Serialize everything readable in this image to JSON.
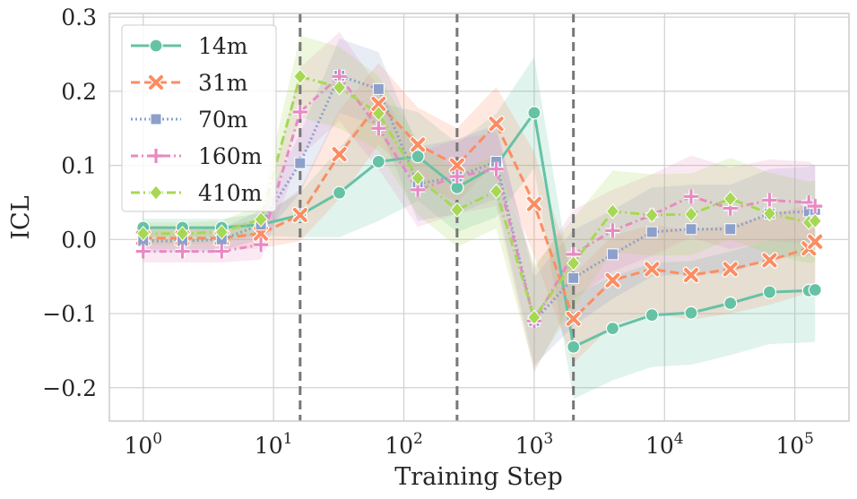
{
  "chart_data": {
    "type": "line",
    "title": "",
    "xlabel": "Training Step",
    "ylabel": "ICL",
    "xscale": "log",
    "xlim": [
      0.55,
      260000
    ],
    "ylim": [
      -0.245,
      0.305
    ],
    "x_ticks": [
      {
        "value": 1,
        "base": "10",
        "exp": "0"
      },
      {
        "value": 10,
        "base": "10",
        "exp": "1"
      },
      {
        "value": 100,
        "base": "10",
        "exp": "2"
      },
      {
        "value": 1000,
        "base": "10",
        "exp": "3"
      },
      {
        "value": 10000,
        "base": "10",
        "exp": "4"
      },
      {
        "value": 100000,
        "base": "10",
        "exp": "5"
      }
    ],
    "y_ticks": [
      {
        "value": -0.2,
        "label": "−0.2"
      },
      {
        "value": -0.1,
        "label": "−0.1"
      },
      {
        "value": 0.0,
        "label": "0.0"
      },
      {
        "value": 0.1,
        "label": "0.1"
      },
      {
        "value": 0.2,
        "label": "0.2"
      },
      {
        "value": 0.3,
        "label": "0.3"
      }
    ],
    "grid": true,
    "legend_position": "top-left",
    "vlines": [
      16,
      256,
      2000
    ],
    "x": [
      1,
      2,
      4,
      8,
      16,
      32,
      64,
      128,
      256,
      512,
      1000,
      2000,
      4000,
      8000,
      16000,
      32000,
      64000,
      128000,
      143000
    ],
    "series": [
      {
        "name": "14m",
        "color": "#66c2a5",
        "dash": "",
        "marker": "circle",
        "values": [
          0.016,
          0.016,
          0.016,
          0.02,
          0.033,
          0.063,
          0.105,
          0.112,
          0.07,
          0.1,
          0.171,
          -0.145,
          -0.12,
          -0.102,
          -0.099,
          -0.086,
          -0.071,
          -0.069,
          -0.068
        ],
        "band": [
          0.012,
          0.012,
          0.012,
          0.015,
          0.03,
          0.06,
          0.08,
          0.06,
          0.06,
          0.07,
          0.075,
          0.07,
          0.07,
          0.07,
          0.07,
          0.07,
          0.07,
          0.07,
          0.07
        ]
      },
      {
        "name": "31m",
        "color": "#fc8d62",
        "dash": "10,5",
        "marker": "x",
        "values": [
          0.002,
          0.002,
          0.002,
          0.008,
          0.033,
          0.115,
          0.183,
          0.128,
          0.1,
          0.156,
          0.048,
          -0.107,
          -0.055,
          -0.04,
          -0.048,
          -0.04,
          -0.028,
          -0.012,
          -0.003
        ],
        "band": [
          0.015,
          0.015,
          0.015,
          0.02,
          0.035,
          0.06,
          0.055,
          0.05,
          0.05,
          0.05,
          0.07,
          0.06,
          0.06,
          0.06,
          0.06,
          0.06,
          0.06,
          0.06,
          0.06
        ]
      },
      {
        "name": "70m",
        "color": "#8da0cb",
        "dash": "2,3",
        "marker": "square",
        "values": [
          -0.002,
          -0.002,
          0.0,
          0.02,
          0.103,
          0.221,
          0.203,
          0.075,
          0.085,
          0.105,
          -0.11,
          -0.052,
          -0.02,
          0.01,
          0.014,
          0.014,
          0.035,
          0.038,
          0.04
        ],
        "band": [
          0.015,
          0.015,
          0.015,
          0.02,
          0.04,
          0.05,
          0.05,
          0.05,
          0.05,
          0.05,
          0.06,
          0.065,
          0.06,
          0.06,
          0.06,
          0.06,
          0.06,
          0.06,
          0.06
        ]
      },
      {
        "name": "160m",
        "color": "#e78ac3",
        "dash": "8,4,2,4",
        "marker": "plus",
        "values": [
          -0.016,
          -0.016,
          -0.016,
          -0.007,
          0.172,
          0.22,
          0.15,
          0.067,
          0.085,
          0.095,
          -0.11,
          -0.02,
          0.012,
          0.033,
          0.058,
          0.042,
          0.053,
          0.05,
          0.045
        ],
        "band": [
          0.015,
          0.015,
          0.015,
          0.02,
          0.06,
          0.06,
          0.055,
          0.05,
          0.05,
          0.05,
          0.07,
          0.06,
          0.055,
          0.055,
          0.055,
          0.055,
          0.055,
          0.055,
          0.055
        ]
      },
      {
        "name": "410m",
        "color": "#a6d854",
        "dash": "10,4,2,4",
        "marker": "diamond",
        "values": [
          0.008,
          0.008,
          0.01,
          0.027,
          0.22,
          0.205,
          0.17,
          0.083,
          0.04,
          0.065,
          -0.105,
          -0.032,
          0.038,
          0.033,
          0.034,
          0.055,
          0.035,
          0.023,
          0.025
        ],
        "band": [
          0.015,
          0.015,
          0.015,
          0.02,
          0.055,
          0.055,
          0.05,
          0.05,
          0.05,
          0.05,
          0.07,
          0.06,
          0.055,
          0.055,
          0.055,
          0.055,
          0.055,
          0.055,
          0.055
        ]
      }
    ]
  }
}
